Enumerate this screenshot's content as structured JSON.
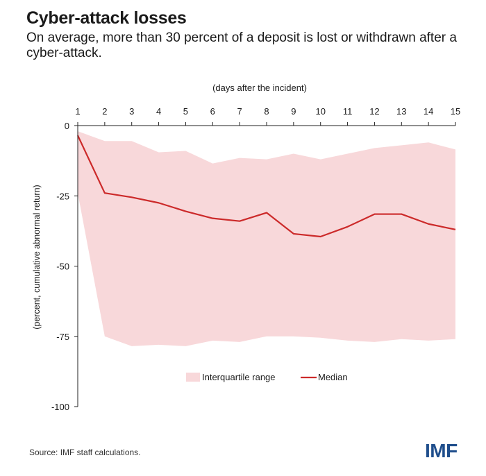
{
  "title": "Cyber-attack losses",
  "subtitle": "On average, more than 30 percent of a deposit is lost or withdrawn after a cyber-attack.",
  "source": "Source: IMF staff calculations.",
  "logo_text": "IMF",
  "colors": {
    "median": "#cc2a2a",
    "range": "#f8d8da",
    "axis": "#222222"
  },
  "chart_data": {
    "type": "area",
    "xlabel": "(days after the incident)",
    "ylabel": "(percent, cumulative abnormal return)",
    "x": [
      1,
      2,
      3,
      4,
      5,
      6,
      7,
      8,
      9,
      10,
      11,
      12,
      13,
      14,
      15
    ],
    "xlim": [
      1,
      15
    ],
    "ylim": [
      -100,
      0
    ],
    "y_ticks": [
      0,
      -25,
      -50,
      -75,
      -100
    ],
    "x_axis_position": "top",
    "grid": false,
    "legend_position": "bottom-center",
    "series": [
      {
        "name": "Interquartile range",
        "kind": "band",
        "upper": [
          -2,
          -5.5,
          -5.5,
          -9.5,
          -9,
          -13.5,
          -11.5,
          -12,
          -10,
          -12,
          -10,
          -8,
          -7,
          -6,
          -8.5
        ],
        "lower": [
          -24,
          -75,
          -78.5,
          -78,
          -78.5,
          -76.5,
          -77,
          -75,
          -75,
          -75.5,
          -76.5,
          -77,
          -76,
          -76.5,
          -76
        ]
      },
      {
        "name": "Median",
        "kind": "line",
        "values": [
          -3.5,
          -24,
          -25.5,
          -27.5,
          -30.5,
          -33,
          -34,
          -31,
          -38.5,
          -39.5,
          -36,
          -31.5,
          -31.5,
          -35,
          -37
        ]
      }
    ]
  }
}
